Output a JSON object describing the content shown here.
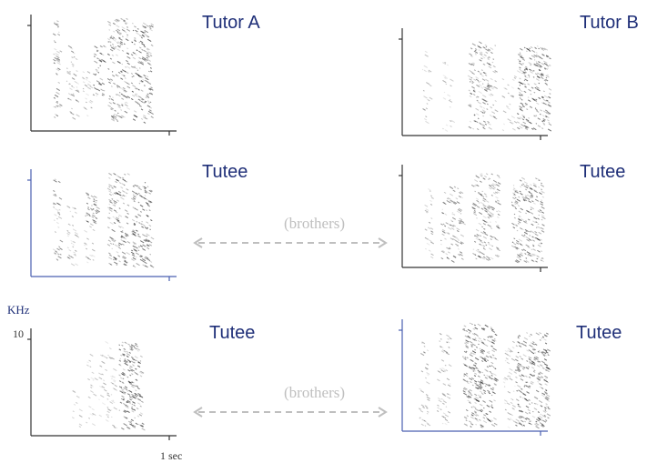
{
  "labels": {
    "tutor_a": "Tutor A",
    "tutor_b": "Tutor B",
    "tutee_1": "Tutee",
    "tutee_2": "Tutee",
    "tutee_3": "Tutee",
    "tutee_4": "Tutee"
  },
  "axis": {
    "unit": "KHz",
    "max_value": "10",
    "time_label": "1 sec"
  },
  "relations": {
    "row2": "(brothers)",
    "row3": "(brothers)"
  },
  "colors": {
    "label_text": "#1f2f78",
    "axis_black": "#333333",
    "axis_blue": "#4a5fb0",
    "arrow_gray": "#bfbfbf",
    "spectrogram_ink": "#2a2a2a"
  }
}
